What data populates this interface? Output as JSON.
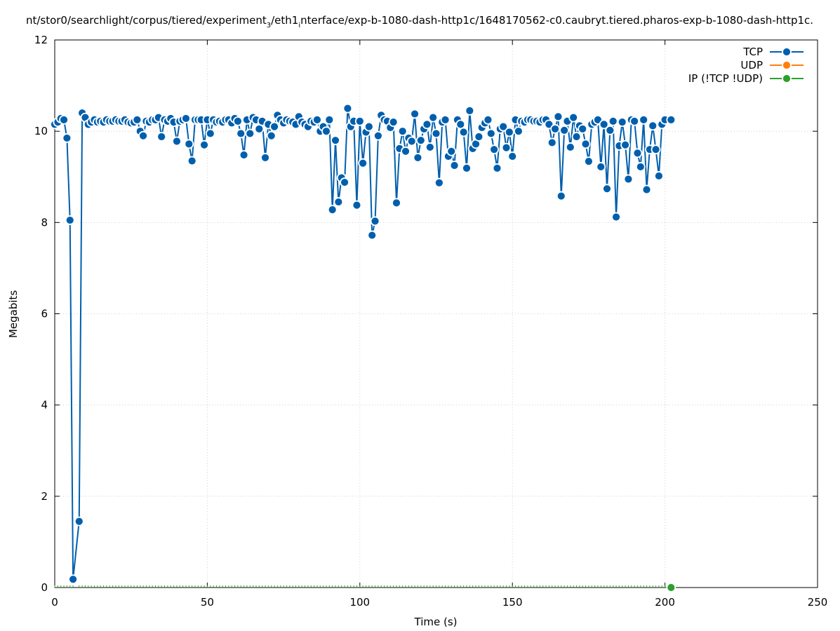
{
  "chart_data": {
    "type": "line",
    "title_parts": {
      "prefix": "nt/stor0/searchlight/corpus/tiered/experiment",
      "sub1": "3",
      "mid": "/eth1",
      "sub2": "i",
      "suffix": "nterface/exp-b-1080-dash-http1c/1648170562-c0.caubryt.tiered.pharos-exp-b-1080-dash-http1c."
    },
    "xlabel": "Time (s)",
    "ylabel": "Megabits",
    "xlim": [
      0,
      250
    ],
    "ylim": [
      0,
      12
    ],
    "xticks": [
      0,
      50,
      100,
      150,
      200,
      250
    ],
    "yticks": [
      0,
      2,
      4,
      6,
      8,
      10,
      12
    ],
    "grid": true,
    "legend_position": "top-right",
    "series": [
      {
        "name": "TCP",
        "color": "#005fad",
        "points": [
          [
            0,
            10.15
          ],
          [
            1,
            10.2
          ],
          [
            2,
            10.28
          ],
          [
            3,
            10.25
          ],
          [
            4,
            9.85
          ],
          [
            5,
            8.05
          ],
          [
            6,
            0.18
          ],
          [
            8,
            1.45
          ],
          [
            9,
            10.4
          ],
          [
            10,
            10.3
          ],
          [
            11,
            10.15
          ],
          [
            12,
            10.2
          ],
          [
            13,
            10.25
          ],
          [
            14,
            10.2
          ],
          [
            15,
            10.22
          ],
          [
            16,
            10.2
          ],
          [
            17,
            10.25
          ],
          [
            18,
            10.22
          ],
          [
            19,
            10.22
          ],
          [
            20,
            10.25
          ],
          [
            21,
            10.22
          ],
          [
            22,
            10.22
          ],
          [
            23,
            10.25
          ],
          [
            24,
            10.2
          ],
          [
            25,
            10.18
          ],
          [
            26,
            10.2
          ],
          [
            27,
            10.25
          ],
          [
            28,
            10.0
          ],
          [
            29,
            9.9
          ],
          [
            30,
            10.22
          ],
          [
            31,
            10.2
          ],
          [
            32,
            10.25
          ],
          [
            33,
            10.25
          ],
          [
            34,
            10.3
          ],
          [
            35,
            9.88
          ],
          [
            36,
            10.25
          ],
          [
            37,
            10.22
          ],
          [
            38,
            10.28
          ],
          [
            39,
            10.2
          ],
          [
            40,
            9.78
          ],
          [
            41,
            10.22
          ],
          [
            42,
            10.25
          ],
          [
            43,
            10.28
          ],
          [
            44,
            9.72
          ],
          [
            45,
            9.35
          ],
          [
            46,
            10.25
          ],
          [
            47,
            10.25
          ],
          [
            48,
            10.25
          ],
          [
            49,
            9.7
          ],
          [
            50,
            10.25
          ],
          [
            51,
            9.95
          ],
          [
            52,
            10.25
          ],
          [
            53,
            10.2
          ],
          [
            54,
            10.22
          ],
          [
            55,
            10.2
          ],
          [
            56,
            10.25
          ],
          [
            57,
            10.25
          ],
          [
            58,
            10.18
          ],
          [
            59,
            10.28
          ],
          [
            60,
            10.22
          ],
          [
            61,
            9.95
          ],
          [
            62,
            9.48
          ],
          [
            63,
            10.25
          ],
          [
            64,
            9.95
          ],
          [
            65,
            10.3
          ],
          [
            66,
            10.25
          ],
          [
            67,
            10.05
          ],
          [
            68,
            10.22
          ],
          [
            69,
            9.42
          ],
          [
            70,
            10.15
          ],
          [
            71,
            9.9
          ],
          [
            72,
            10.1
          ],
          [
            73,
            10.35
          ],
          [
            74,
            10.25
          ],
          [
            75,
            10.18
          ],
          [
            76,
            10.25
          ],
          [
            77,
            10.22
          ],
          [
            78,
            10.2
          ],
          [
            79,
            10.15
          ],
          [
            80,
            10.32
          ],
          [
            81,
            10.2
          ],
          [
            82,
            10.15
          ],
          [
            83,
            10.1
          ],
          [
            84,
            10.22
          ],
          [
            85,
            10.2
          ],
          [
            86,
            10.25
          ],
          [
            87,
            10.0
          ],
          [
            88,
            10.1
          ],
          [
            89,
            10.0
          ],
          [
            90,
            10.25
          ],
          [
            91,
            8.28
          ],
          [
            92,
            9.8
          ],
          [
            93,
            8.45
          ],
          [
            94,
            8.98
          ],
          [
            95,
            8.88
          ],
          [
            96,
            10.5
          ],
          [
            97,
            10.1
          ],
          [
            98,
            10.22
          ],
          [
            99,
            8.38
          ],
          [
            100,
            10.22
          ],
          [
            101,
            9.3
          ],
          [
            102,
            9.98
          ],
          [
            103,
            10.1
          ],
          [
            104,
            7.72
          ],
          [
            105,
            8.03
          ],
          [
            106,
            9.9
          ],
          [
            107,
            10.35
          ],
          [
            108,
            10.25
          ],
          [
            109,
            10.22
          ],
          [
            110,
            10.08
          ],
          [
            111,
            10.2
          ],
          [
            112,
            8.43
          ],
          [
            113,
            9.62
          ],
          [
            114,
            10.0
          ],
          [
            115,
            9.56
          ],
          [
            116,
            9.85
          ],
          [
            117,
            9.78
          ],
          [
            118,
            10.38
          ],
          [
            119,
            9.42
          ],
          [
            120,
            9.8
          ],
          [
            121,
            10.05
          ],
          [
            122,
            10.15
          ],
          [
            123,
            9.65
          ],
          [
            124,
            10.3
          ],
          [
            125,
            9.95
          ],
          [
            126,
            8.87
          ],
          [
            127,
            10.2
          ],
          [
            128,
            10.25
          ],
          [
            129,
            9.45
          ],
          [
            130,
            9.56
          ],
          [
            131,
            9.25
          ],
          [
            132,
            10.25
          ],
          [
            133,
            10.15
          ],
          [
            134,
            9.98
          ],
          [
            135,
            9.19
          ],
          [
            136,
            10.45
          ],
          [
            137,
            9.62
          ],
          [
            138,
            9.72
          ],
          [
            139,
            9.88
          ],
          [
            140,
            10.08
          ],
          [
            141,
            10.18
          ],
          [
            142,
            10.25
          ],
          [
            143,
            9.95
          ],
          [
            144,
            9.6
          ],
          [
            145,
            9.19
          ],
          [
            146,
            10.05
          ],
          [
            147,
            10.1
          ],
          [
            148,
            9.64
          ],
          [
            149,
            9.98
          ],
          [
            150,
            9.45
          ],
          [
            151,
            10.25
          ],
          [
            152,
            10.0
          ],
          [
            153,
            10.22
          ],
          [
            154,
            10.2
          ],
          [
            155,
            10.25
          ],
          [
            156,
            10.25
          ],
          [
            157,
            10.22
          ],
          [
            158,
            10.22
          ],
          [
            159,
            10.2
          ],
          [
            160,
            10.25
          ],
          [
            161,
            10.25
          ],
          [
            162,
            10.15
          ],
          [
            163,
            9.75
          ],
          [
            164,
            10.05
          ],
          [
            165,
            10.32
          ],
          [
            166,
            8.58
          ],
          [
            167,
            10.02
          ],
          [
            168,
            10.22
          ],
          [
            169,
            9.65
          ],
          [
            170,
            10.3
          ],
          [
            171,
            9.88
          ],
          [
            172,
            10.12
          ],
          [
            173,
            10.05
          ],
          [
            174,
            9.72
          ],
          [
            175,
            9.34
          ],
          [
            176,
            10.15
          ],
          [
            177,
            10.2
          ],
          [
            178,
            10.25
          ],
          [
            179,
            9.22
          ],
          [
            180,
            10.15
          ],
          [
            181,
            8.74
          ],
          [
            182,
            10.02
          ],
          [
            183,
            10.22
          ],
          [
            184,
            8.12
          ],
          [
            185,
            9.68
          ],
          [
            186,
            10.2
          ],
          [
            187,
            9.7
          ],
          [
            188,
            8.95
          ],
          [
            189,
            10.25
          ],
          [
            190,
            10.22
          ],
          [
            191,
            9.52
          ],
          [
            192,
            9.22
          ],
          [
            193,
            10.25
          ],
          [
            194,
            8.72
          ],
          [
            195,
            9.6
          ],
          [
            196,
            10.12
          ],
          [
            197,
            9.6
          ],
          [
            198,
            9.02
          ],
          [
            199,
            10.15
          ],
          [
            200,
            10.25
          ],
          [
            202,
            10.25
          ]
        ]
      },
      {
        "name": "UDP",
        "color": "#ff7f0e",
        "points": []
      },
      {
        "name": "IP (!TCP  !UDP)",
        "color": "#2ca02c",
        "points": [
          [
            202,
            0
          ]
        ]
      }
    ]
  }
}
